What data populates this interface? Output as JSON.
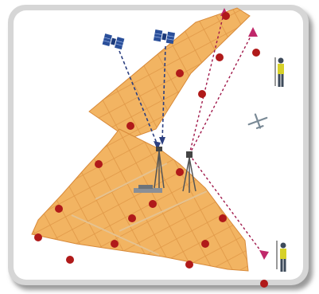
{
  "figure": {
    "frame_color": "#d6d6d6",
    "shadow_color": "#9a9a9a",
    "background": "#ffffff"
  },
  "colors": {
    "parcel_fill": "#f2b462",
    "parcel_line": "#d88a3a",
    "control_point": "#b01a1a",
    "satellite_body": "#2a4f9a",
    "signal_line": "#2c3f80",
    "survey_line": "#a0184a",
    "target_triangle": "#c0286a",
    "receiver_pole": "#555555",
    "person_vest": "#d7d12a",
    "person_body": "#3d4a5a",
    "aircraft": "#7a8a96"
  },
  "icons": {
    "satellite": "satellite-icon",
    "gnss_receiver": "gnss-receiver-icon",
    "total_station": "total-station-icon",
    "surveyor": "surveyor-icon",
    "aircraft": "aircraft-icon",
    "target": "target-triangle-icon"
  }
}
